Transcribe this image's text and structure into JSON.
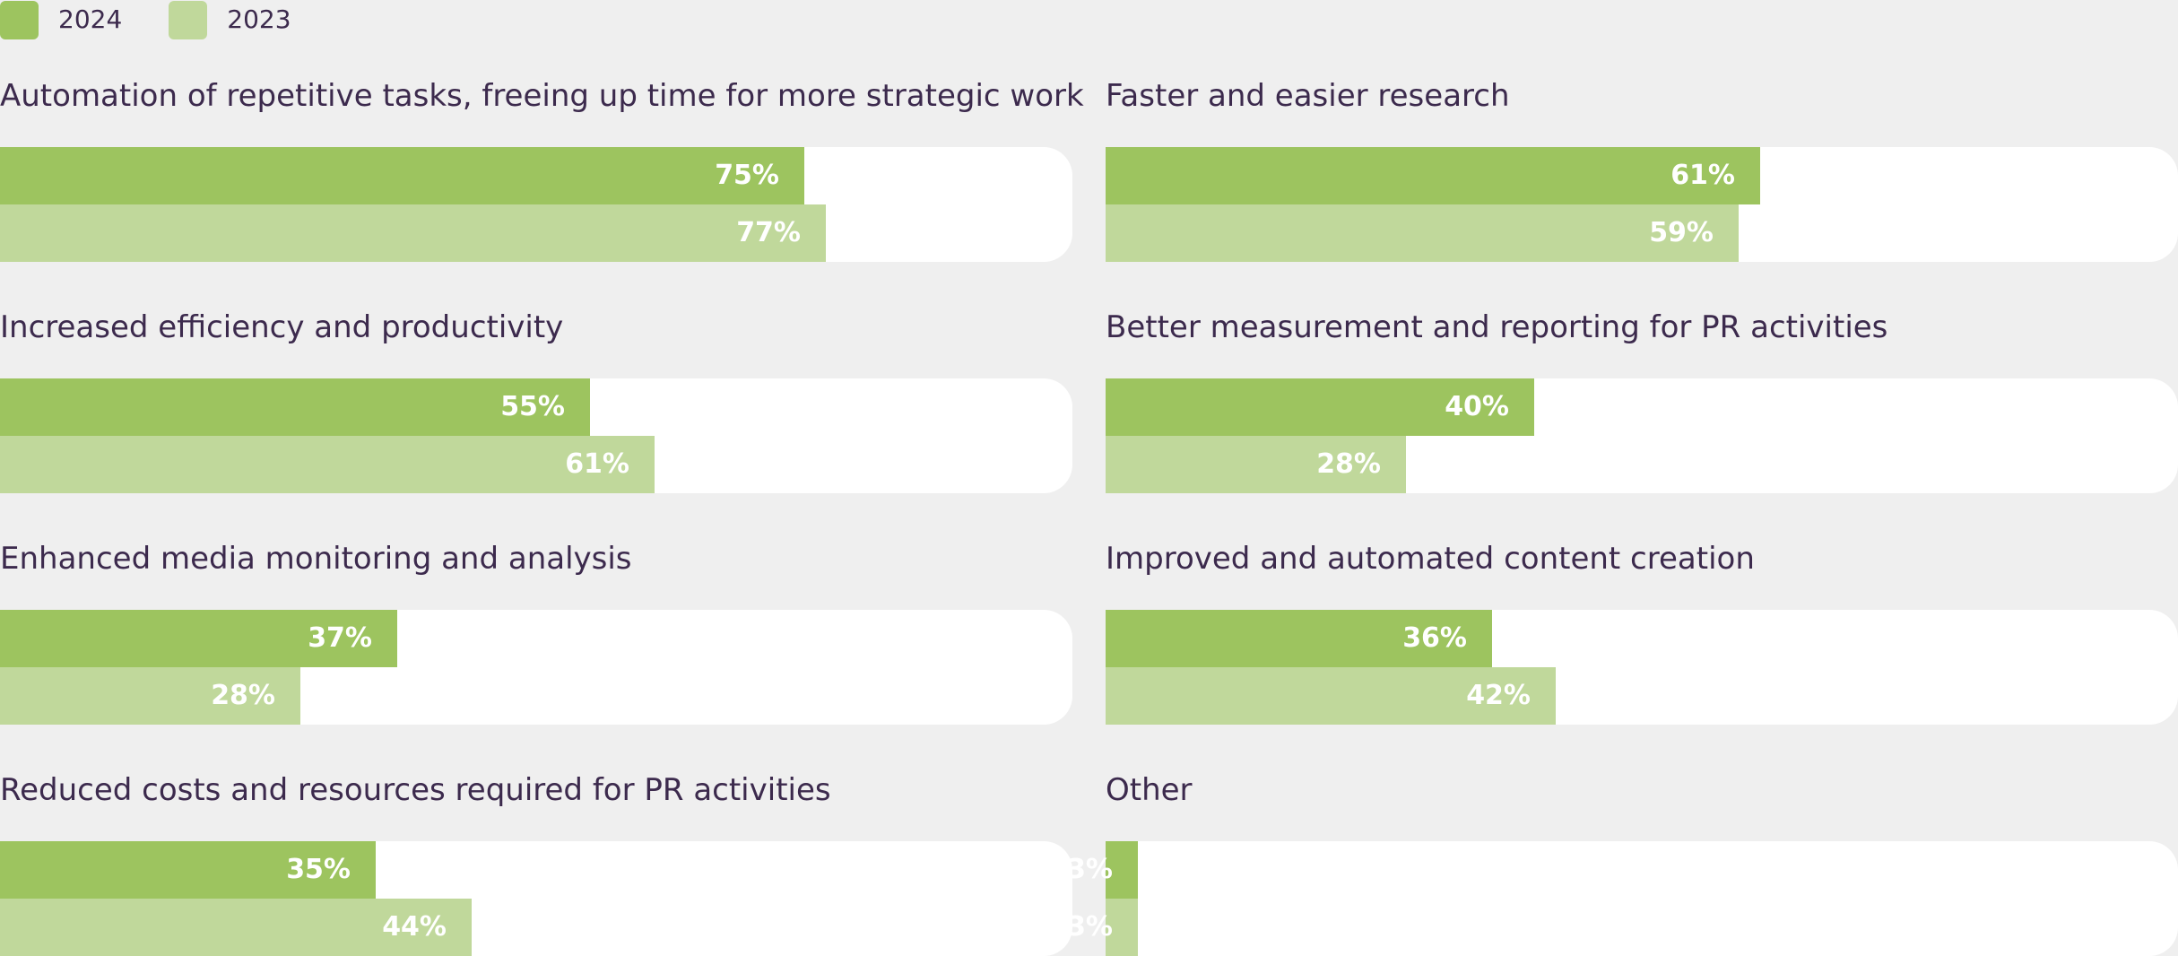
{
  "colors": {
    "series_2024": "#9dc45f",
    "series_2023": "#c0d89b",
    "text": "#3c2a4d",
    "track": "#ffffff",
    "background": "#efefef"
  },
  "legend": [
    {
      "label": "2024",
      "color": "#9dc45f"
    },
    {
      "label": "2023",
      "color": "#c0d89b"
    }
  ],
  "chart_data": {
    "type": "bar",
    "orientation": "horizontal",
    "series": [
      {
        "name": "2024"
      },
      {
        "name": "2023"
      }
    ],
    "xlim": [
      0,
      100
    ],
    "grid": false,
    "legend_position": "top-left",
    "panels": [
      {
        "title": "Automation of repetitive tasks, freeing up time for more strategic work",
        "values": [
          75,
          77
        ],
        "labels": [
          "75%",
          "77%"
        ]
      },
      {
        "title": "Faster and easier research",
        "values": [
          61,
          59
        ],
        "labels": [
          "61%",
          "59%"
        ]
      },
      {
        "title": "Increased efficiency and productivity",
        "values": [
          55,
          61
        ],
        "labels": [
          "55%",
          "61%"
        ]
      },
      {
        "title": "Better measurement and reporting for PR activities",
        "values": [
          40,
          28
        ],
        "labels": [
          "40%",
          "28%"
        ]
      },
      {
        "title": "Enhanced media monitoring and analysis",
        "values": [
          37,
          28
        ],
        "labels": [
          "37%",
          "28%"
        ]
      },
      {
        "title": "Improved and automated content creation",
        "values": [
          36,
          42
        ],
        "labels": [
          "36%",
          "42%"
        ]
      },
      {
        "title": "Reduced costs and resources required for PR activities",
        "values": [
          35,
          44
        ],
        "labels": [
          "35%",
          "44%"
        ]
      },
      {
        "title": "Other",
        "values": [
          3,
          3
        ],
        "labels": [
          "3%",
          "3%"
        ]
      }
    ]
  }
}
